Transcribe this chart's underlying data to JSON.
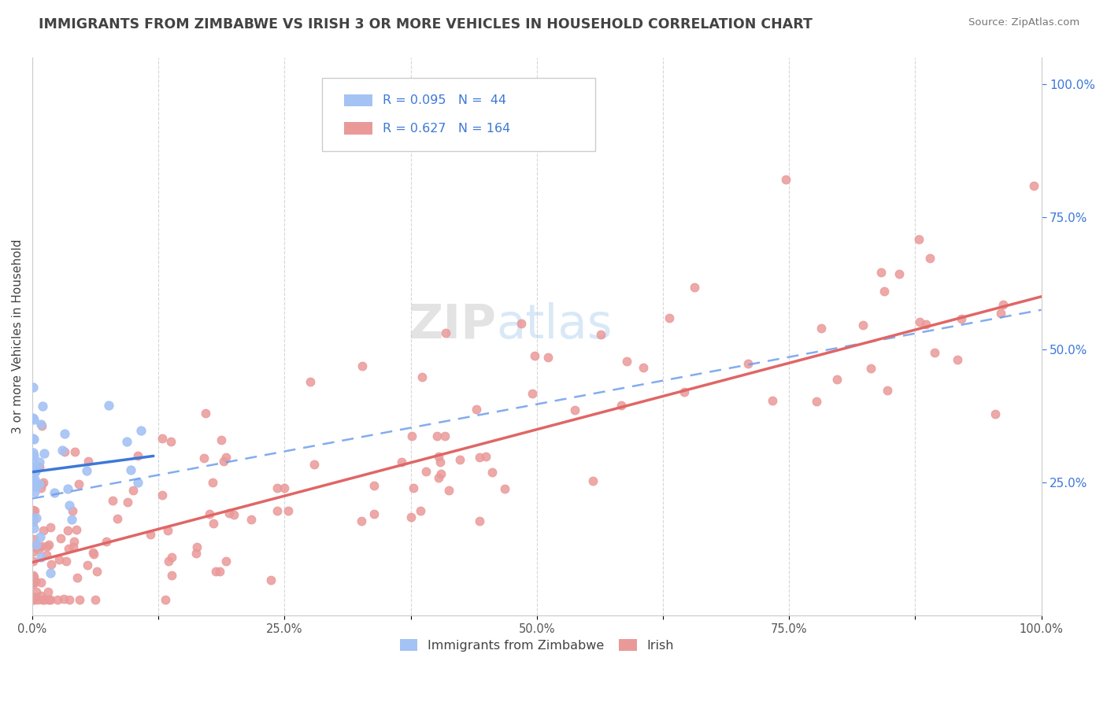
{
  "title": "IMMIGRANTS FROM ZIMBABWE VS IRISH 3 OR MORE VEHICLES IN HOUSEHOLD CORRELATION CHART",
  "source": "Source: ZipAtlas.com",
  "ylabel": "3 or more Vehicles in Household",
  "legend_label1": "Immigrants from Zimbabwe",
  "legend_label2": "Irish",
  "R1": "0.095",
  "N1": "44",
  "R2": "0.627",
  "N2": "164",
  "watermark_zip": "ZIP",
  "watermark_atlas": "atlas",
  "scatter_blue_color": "#a4c2f4",
  "scatter_pink_color": "#ea9999",
  "blue_line_color": "#3c78d8",
  "pink_line_color": "#e06666",
  "dash_line_color": "#6d9eeb",
  "right_tick_color": "#3c78d8",
  "title_color": "#434343",
  "source_color": "#777777",
  "grid_color": "#cccccc",
  "legend_border_color": "#cccccc",
  "bg_color": "#ffffff",
  "xlim": [
    0.0,
    1.0
  ],
  "ylim": [
    0.0,
    1.05
  ],
  "xticks": [
    0.0,
    0.125,
    0.25,
    0.375,
    0.5,
    0.625,
    0.75,
    0.875,
    1.0
  ],
  "xtick_labels": [
    "0.0%",
    "",
    "25.0%",
    "",
    "50.0%",
    "",
    "75.0%",
    "",
    "100.0%"
  ],
  "ytick_labels_right": [
    "25.0%",
    "50.0%",
    "75.0%",
    "100.0%"
  ],
  "ytick_vals_right": [
    0.25,
    0.5,
    0.75,
    1.0
  ],
  "blue_trend_x": [
    0.0,
    0.12
  ],
  "blue_trend_y": [
    0.27,
    0.3
  ],
  "pink_trend_x": [
    0.0,
    1.0
  ],
  "pink_trend_y": [
    0.1,
    0.6
  ],
  "dash_trend_x": [
    0.0,
    1.0
  ],
  "dash_trend_y": [
    0.22,
    0.575
  ]
}
